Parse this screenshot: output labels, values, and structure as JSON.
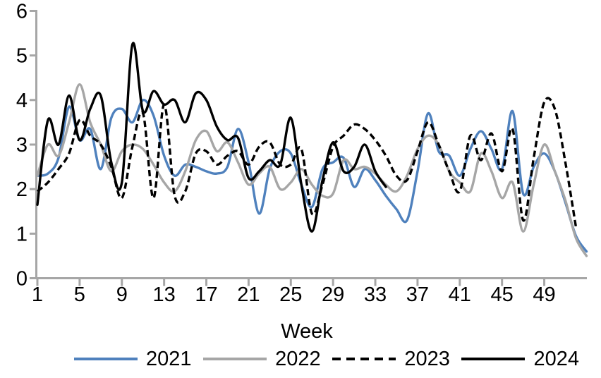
{
  "chart_data": {
    "type": "line",
    "title": "",
    "xlabel": "Week",
    "ylabel": "",
    "grid": false,
    "legend_position": "bottom",
    "axis_color": "#A6A6A6",
    "text_color": "#000000",
    "xlim": [
      1,
      53
    ],
    "ylim": [
      0,
      6
    ],
    "x_ticks": [
      1,
      5,
      9,
      13,
      17,
      21,
      25,
      29,
      33,
      37,
      41,
      45,
      49
    ],
    "y_ticks": [
      0,
      1,
      2,
      3,
      4,
      5,
      6
    ],
    "x": [
      1,
      2,
      3,
      4,
      5,
      6,
      7,
      8,
      9,
      10,
      11,
      12,
      13,
      14,
      15,
      16,
      17,
      18,
      19,
      20,
      21,
      22,
      23,
      24,
      25,
      26,
      27,
      28,
      29,
      30,
      31,
      32,
      33,
      34,
      35,
      36,
      37,
      38,
      39,
      40,
      41,
      42,
      43,
      44,
      45,
      46,
      47,
      48,
      49,
      50,
      51,
      52,
      53
    ],
    "series": [
      {
        "name": "2021",
        "color": "#4F81BD",
        "style": "solid",
        "values": [
          2.3,
          2.35,
          2.7,
          3.85,
          3.1,
          3.35,
          2.45,
          3.6,
          3.8,
          3.5,
          4.0,
          3.65,
          2.75,
          2.3,
          2.55,
          2.5,
          2.4,
          2.35,
          2.5,
          3.35,
          2.6,
          1.45,
          2.45,
          2.85,
          2.8,
          2.1,
          1.6,
          2.45,
          2.6,
          2.7,
          2.05,
          2.45,
          2.2,
          1.85,
          1.55,
          1.3,
          2.4,
          3.7,
          2.85,
          2.75,
          2.3,
          2.9,
          3.3,
          2.9,
          2.45,
          3.75,
          1.9,
          2.5,
          2.8,
          2.4,
          1.7,
          0.95,
          0.6
        ]
      },
      {
        "name": "2022",
        "color": "#A6A6A6",
        "style": "solid",
        "values": [
          2.3,
          3.0,
          2.75,
          3.5,
          4.35,
          3.5,
          3.0,
          2.4,
          2.85,
          3.0,
          2.9,
          2.55,
          2.15,
          1.95,
          2.4,
          3.1,
          3.3,
          2.85,
          3.05,
          2.6,
          2.1,
          2.35,
          2.5,
          2.0,
          2.15,
          2.45,
          2.1,
          1.85,
          1.9,
          2.65,
          2.45,
          2.5,
          2.35,
          2.1,
          1.95,
          2.3,
          2.9,
          3.2,
          3.0,
          2.4,
          2.15,
          1.95,
          2.8,
          2.4,
          1.8,
          2.15,
          1.05,
          2.1,
          3.0,
          2.4,
          1.75,
          0.9,
          0.5
        ]
      },
      {
        "name": "2023",
        "color": "#000000",
        "style": "dashed",
        "values": [
          1.95,
          2.15,
          2.45,
          2.8,
          3.55,
          3.2,
          3.0,
          2.5,
          1.8,
          2.95,
          3.7,
          1.8,
          3.9,
          1.85,
          1.95,
          2.8,
          2.85,
          2.55,
          2.75,
          2.85,
          2.55,
          2.95,
          3.05,
          2.55,
          2.55,
          2.9,
          1.45,
          2.1,
          2.95,
          3.2,
          3.45,
          3.35,
          3.1,
          2.75,
          2.3,
          2.2,
          2.85,
          3.5,
          3.0,
          2.4,
          1.95,
          3.2,
          2.65,
          3.25,
          2.4,
          3.35,
          1.3,
          2.7,
          3.95,
          3.8,
          2.6,
          1.15
        ]
      },
      {
        "name": "2024",
        "color": "#000000",
        "style": "solid",
        "values": [
          1.65,
          3.55,
          3.0,
          4.1,
          3.1,
          3.8,
          4.1,
          2.6,
          2.15,
          5.25,
          3.75,
          4.2,
          3.9,
          4.0,
          3.5,
          4.15,
          4.0,
          3.4,
          3.1,
          3.15,
          2.25,
          2.4,
          2.65,
          2.55,
          3.6,
          2.1,
          1.05,
          2.2,
          3.05,
          2.4,
          2.5,
          3.0,
          2.4,
          2.05
        ]
      }
    ]
  }
}
